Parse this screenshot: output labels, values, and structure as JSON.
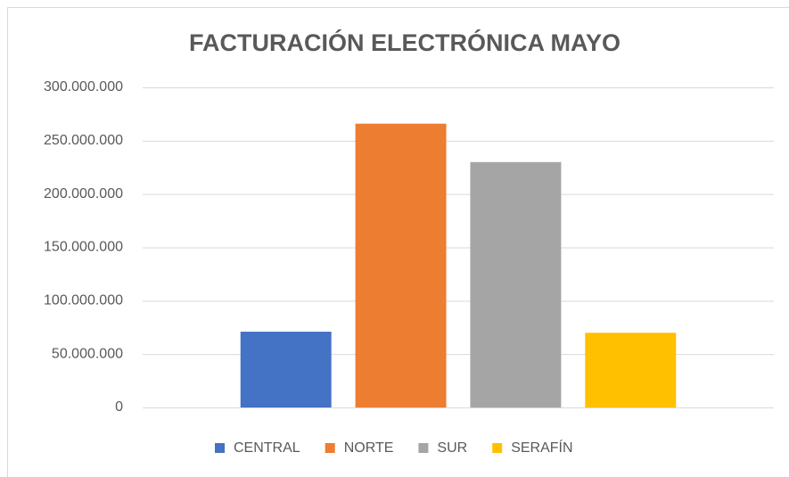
{
  "chart_data": {
    "type": "bar",
    "title": "FACTURACIÓN ELECTRÓNICA MAYO",
    "categories": [
      null
    ],
    "series": [
      {
        "name": "CENTRAL",
        "color": "#4472c4",
        "values": [
          71000000
        ]
      },
      {
        "name": "NORTE",
        "color": "#ed7d31",
        "values": [
          266000000
        ]
      },
      {
        "name": "SUR",
        "color": "#a5a5a5",
        "values": [
          230000000
        ]
      },
      {
        "name": "SERAFÍN",
        "color": "#ffc000",
        "values": [
          70000000
        ]
      }
    ],
    "ylim": [
      0,
      300000000
    ],
    "yticks": [
      0,
      {
        "value": 50000000,
        "label": "50.000.000"
      },
      {
        "value": 100000000,
        "label": "100.000.000"
      },
      {
        "value": 150000000,
        "label": "150.000.000"
      },
      {
        "value": 200000000,
        "label": "200.000.000"
      },
      {
        "value": 250000000,
        "label": "250.000.000"
      },
      {
        "value": 300000000,
        "label": "300.000.000"
      }
    ],
    "grid": true,
    "legend": "bottom"
  }
}
